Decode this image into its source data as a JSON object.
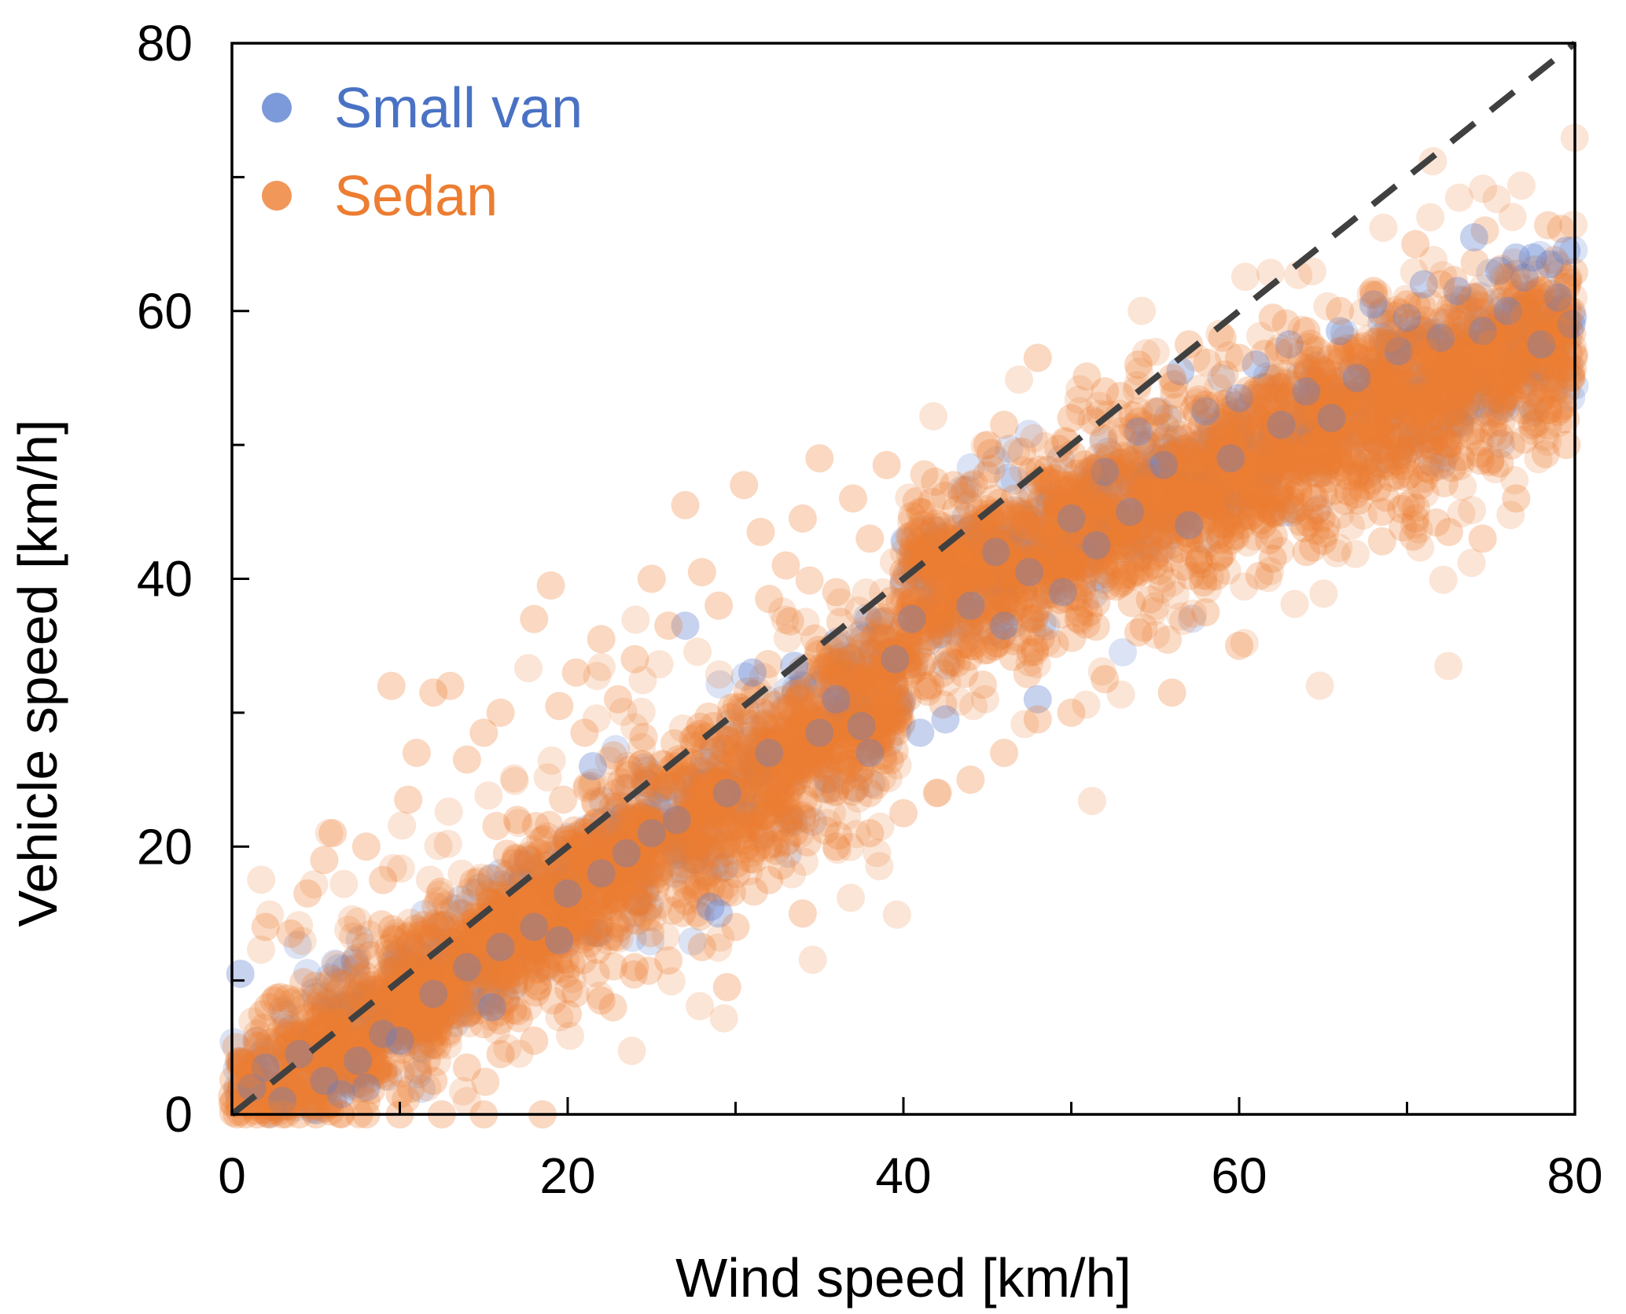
{
  "chart_data": {
    "type": "scatter",
    "title": "",
    "xlabel": "Wind speed [km/h]",
    "ylabel": "Vehicle speed [km/h]",
    "xlim": [
      0,
      80
    ],
    "ylim": [
      0,
      80
    ],
    "xticks": [
      0,
      20,
      40,
      60,
      80
    ],
    "yticks": [
      0,
      20,
      40,
      60,
      80
    ],
    "xtick_labels": [
      "0",
      "20",
      "40",
      "60",
      "80"
    ],
    "ytick_labels": [
      "0",
      "20",
      "40",
      "60",
      "80"
    ],
    "minor_tick_step": 10,
    "grid": false,
    "legend_position": "top-left",
    "reference_line": {
      "label": "1:1 line",
      "style": "dashed",
      "color": "#404040",
      "from": [
        0,
        0
      ],
      "to": [
        80,
        80
      ]
    },
    "series": [
      {
        "name": "Small van",
        "color": "#5b7fcf",
        "label_color": "#4a72c4",
        "points": [
          [
            0.5,
            10.5
          ],
          [
            1.2,
            2.0
          ],
          [
            2.0,
            3.5
          ],
          [
            3.0,
            1.0
          ],
          [
            4.0,
            4.5
          ],
          [
            5.5,
            2.5
          ],
          [
            6.5,
            1.5
          ],
          [
            7.5,
            4.0
          ],
          [
            8.0,
            2.0
          ],
          [
            9.0,
            6.0
          ],
          [
            10.0,
            5.5
          ],
          [
            12.0,
            9.0
          ],
          [
            14.0,
            11.0
          ],
          [
            15.5,
            8.0
          ],
          [
            16.0,
            12.5
          ],
          [
            18.0,
            14.0
          ],
          [
            19.5,
            13.0
          ],
          [
            20.0,
            16.5
          ],
          [
            21.5,
            26.0
          ],
          [
            22.0,
            18.0
          ],
          [
            23.5,
            19.5
          ],
          [
            25.0,
            21.0
          ],
          [
            26.5,
            22.0
          ],
          [
            27.0,
            36.5
          ],
          [
            28.5,
            15.5
          ],
          [
            29.0,
            15.0
          ],
          [
            29.5,
            24.0
          ],
          [
            31.0,
            33.0
          ],
          [
            32.0,
            27.0
          ],
          [
            33.5,
            33.5
          ],
          [
            35.0,
            28.5
          ],
          [
            36.0,
            31.0
          ],
          [
            37.5,
            29.0
          ],
          [
            38.0,
            27.0
          ],
          [
            39.5,
            34.0
          ],
          [
            40.5,
            37.0
          ],
          [
            41.0,
            28.5
          ],
          [
            42.5,
            29.5
          ],
          [
            44.0,
            38.0
          ],
          [
            45.5,
            42.0
          ],
          [
            46.0,
            36.5
          ],
          [
            47.5,
            40.5
          ],
          [
            48.0,
            31.0
          ],
          [
            49.5,
            39.0
          ],
          [
            50.0,
            44.5
          ],
          [
            51.5,
            42.5
          ],
          [
            52.0,
            48.0
          ],
          [
            53.5,
            45.0
          ],
          [
            54.0,
            51.0
          ],
          [
            55.5,
            48.5
          ],
          [
            56.5,
            55.5
          ],
          [
            57.0,
            44.0
          ],
          [
            58.0,
            52.5
          ],
          [
            59.5,
            49.0
          ],
          [
            60.0,
            53.5
          ],
          [
            61.0,
            56.0
          ],
          [
            62.5,
            51.5
          ],
          [
            63.0,
            57.5
          ],
          [
            64.0,
            54.0
          ],
          [
            65.5,
            52.0
          ],
          [
            66.0,
            58.5
          ],
          [
            67.0,
            55.0
          ],
          [
            68.0,
            60.5
          ],
          [
            69.5,
            57.0
          ],
          [
            70.0,
            59.5
          ],
          [
            71.0,
            62.0
          ],
          [
            72.0,
            58.0
          ],
          [
            73.0,
            61.5
          ],
          [
            74.0,
            65.5
          ],
          [
            74.5,
            58.5
          ],
          [
            75.5,
            63.0
          ],
          [
            76.0,
            60.0
          ],
          [
            77.0,
            62.5
          ],
          [
            77.5,
            64.0
          ],
          [
            78.0,
            57.5
          ],
          [
            78.5,
            63.5
          ],
          [
            79.0,
            61.0
          ],
          [
            79.5,
            64.5
          ],
          [
            79.8,
            59.0
          ],
          [
            76.5,
            64.0
          ]
        ]
      },
      {
        "name": "Sedan",
        "color": "#ed7d31",
        "label_color": "#ed7d31",
        "points": [
          [
            0.3,
            0.0
          ],
          [
            0.8,
            0.0
          ],
          [
            1.5,
            0.0
          ],
          [
            2.2,
            0.0
          ],
          [
            3.0,
            0.0
          ],
          [
            4.0,
            0.0
          ],
          [
            5.0,
            0.0
          ],
          [
            6.5,
            0.0
          ],
          [
            8.0,
            0.0
          ],
          [
            10.0,
            0.0
          ],
          [
            12.5,
            0.0
          ],
          [
            15.0,
            0.0
          ],
          [
            18.5,
            0.0
          ],
          [
            1.0,
            3.0
          ],
          [
            1.5,
            5.5
          ],
          [
            2.5,
            8.5
          ],
          [
            2.0,
            14.0
          ],
          [
            3.5,
            13.5
          ],
          [
            4.5,
            16.5
          ],
          [
            5.5,
            19.0
          ],
          [
            6.0,
            21.0
          ],
          [
            8.0,
            20.0
          ],
          [
            9.0,
            17.5
          ],
          [
            9.5,
            32.0
          ],
          [
            10.5,
            23.5
          ],
          [
            11.0,
            27.0
          ],
          [
            12.0,
            31.5
          ],
          [
            13.0,
            32.0
          ],
          [
            14.0,
            26.5
          ],
          [
            15.0,
            28.5
          ],
          [
            16.0,
            30.0
          ],
          [
            17.0,
            22.0
          ],
          [
            18.0,
            37.0
          ],
          [
            19.0,
            39.5
          ],
          [
            19.5,
            30.5
          ],
          [
            20.5,
            33.0
          ],
          [
            21.0,
            28.5
          ],
          [
            22.0,
            35.5
          ],
          [
            23.0,
            31.0
          ],
          [
            24.0,
            34.0
          ],
          [
            25.0,
            40.0
          ],
          [
            26.0,
            36.5
          ],
          [
            27.0,
            45.5
          ],
          [
            28.0,
            40.5
          ],
          [
            29.0,
            38.0
          ],
          [
            29.5,
            9.5
          ],
          [
            30.5,
            47.0
          ],
          [
            31.5,
            43.5
          ],
          [
            32.0,
            38.5
          ],
          [
            33.0,
            41.0
          ],
          [
            34.0,
            44.5
          ],
          [
            35.0,
            49.0
          ],
          [
            36.0,
            39.0
          ],
          [
            37.0,
            46.0
          ],
          [
            38.0,
            43.0
          ],
          [
            39.0,
            48.5
          ],
          [
            40.0,
            40.5
          ],
          [
            41.0,
            45.0
          ],
          [
            42.0,
            38.5
          ],
          [
            43.0,
            47.0
          ],
          [
            44.0,
            42.0
          ],
          [
            45.0,
            50.0
          ],
          [
            46.0,
            51.5
          ],
          [
            47.0,
            44.5
          ],
          [
            48.0,
            56.5
          ],
          [
            49.0,
            47.5
          ],
          [
            50.0,
            52.0
          ],
          [
            51.0,
            48.0
          ],
          [
            52.0,
            54.0
          ],
          [
            53.0,
            50.5
          ],
          [
            54.0,
            56.0
          ],
          [
            55.0,
            52.5
          ],
          [
            56.0,
            55.0
          ],
          [
            57.0,
            57.5
          ],
          [
            58.0,
            53.0
          ],
          [
            59.0,
            58.0
          ],
          [
            60.0,
            56.5
          ],
          [
            61.0,
            54.0
          ],
          [
            62.0,
            59.5
          ],
          [
            63.0,
            57.0
          ],
          [
            64.0,
            58.5
          ],
          [
            65.0,
            55.5
          ],
          [
            66.0,
            60.0
          ],
          [
            67.0,
            57.0
          ],
          [
            68.0,
            61.5
          ],
          [
            69.0,
            58.0
          ],
          [
            70.0,
            60.5
          ],
          [
            70.5,
            65.0
          ],
          [
            71.0,
            57.0
          ],
          [
            72.0,
            62.0
          ],
          [
            73.0,
            59.0
          ],
          [
            74.0,
            61.0
          ],
          [
            75.0,
            57.5
          ],
          [
            76.0,
            62.5
          ],
          [
            77.0,
            59.5
          ],
          [
            78.0,
            61.5
          ],
          [
            79.0,
            58.5
          ],
          [
            79.8,
            60.0
          ],
          [
            79.8,
            55.0
          ],
          [
            79.5,
            50.0
          ],
          [
            78.0,
            53.5
          ],
          [
            76.5,
            46.0
          ],
          [
            74.5,
            43.0
          ],
          [
            72.5,
            43.5
          ],
          [
            70.5,
            44.5
          ],
          [
            68.5,
            45.0
          ],
          [
            66.5,
            46.5
          ],
          [
            64.0,
            42.0
          ],
          [
            62.0,
            41.5
          ],
          [
            60.0,
            35.0
          ],
          [
            58.0,
            37.5
          ],
          [
            56.0,
            31.5
          ],
          [
            54.0,
            36.0
          ],
          [
            52.0,
            32.5
          ],
          [
            50.0,
            30.0
          ],
          [
            48.0,
            29.5
          ],
          [
            46.0,
            27.0
          ],
          [
            44.0,
            25.0
          ],
          [
            42.0,
            24.0
          ],
          [
            40.0,
            22.5
          ],
          [
            38.0,
            21.0
          ],
          [
            36.0,
            20.0
          ],
          [
            34.0,
            15.0
          ],
          [
            32.0,
            17.5
          ],
          [
            30.0,
            14.0
          ],
          [
            28.0,
            12.5
          ],
          [
            26.0,
            11.5
          ],
          [
            24.0,
            11.0
          ],
          [
            22.0,
            8.5
          ],
          [
            20.0,
            7.5
          ],
          [
            18.0,
            5.5
          ],
          [
            16.0,
            4.5
          ],
          [
            14.0,
            3.5
          ],
          [
            12.0,
            2.5
          ],
          [
            10.0,
            1.5
          ],
          [
            8.0,
            1.0
          ]
        ]
      }
    ]
  },
  "legend": {
    "items": [
      {
        "label": "Small van",
        "color": "#5b7fcf"
      },
      {
        "label": "Sedan",
        "color": "#ed7d31"
      }
    ]
  }
}
